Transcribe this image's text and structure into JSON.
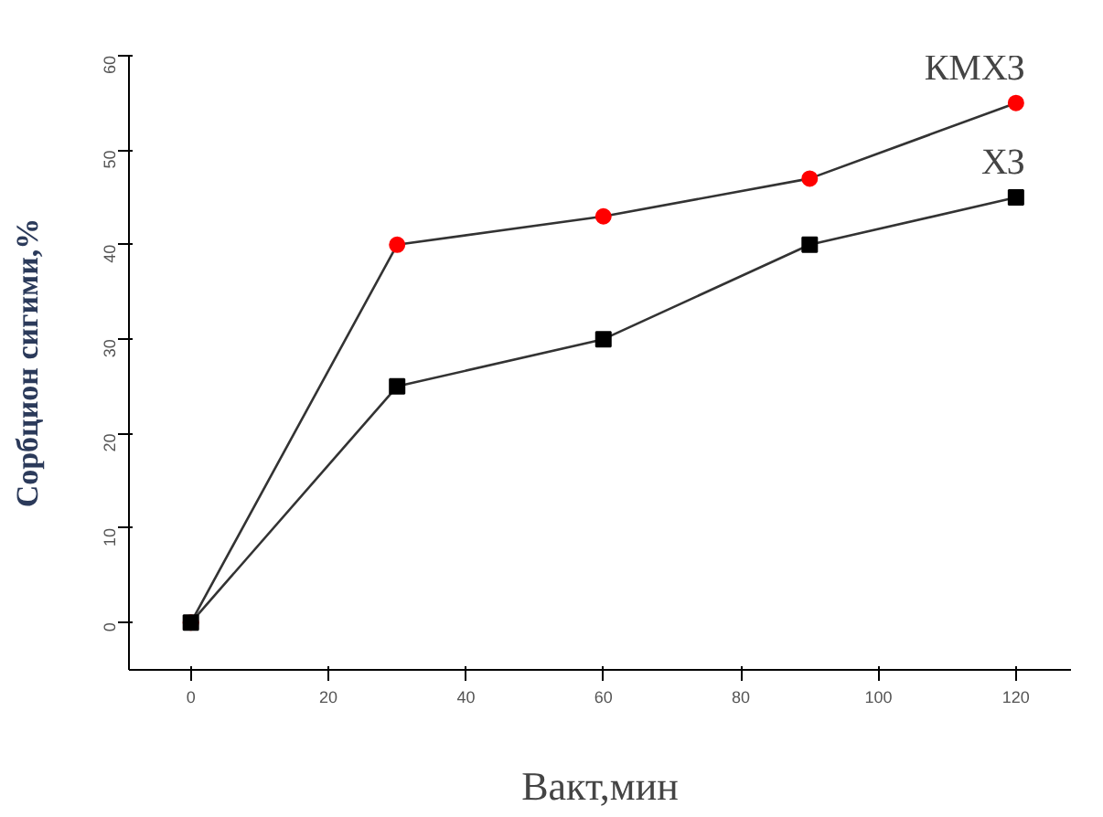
{
  "chart_data": {
    "type": "line",
    "xlabel": "Вакт,мин",
    "ylabel": "Сорбцион сигими,%",
    "x": [
      0,
      30,
      60,
      90,
      120
    ],
    "series": [
      {
        "name": "КМХЗ",
        "color": "#ff0000",
        "marker": "circle",
        "values": [
          0,
          40,
          43,
          47,
          55
        ]
      },
      {
        "name": "ХЗ",
        "color": "#000000",
        "marker": "square",
        "values": [
          0,
          25,
          30,
          40,
          45
        ]
      }
    ],
    "xlim": [
      -9,
      128
    ],
    "xticks": [
      0,
      20,
      40,
      60,
      80,
      100,
      120
    ],
    "ylim": [
      -5,
      60
    ],
    "yticks": [
      0,
      10,
      20,
      30,
      40,
      50,
      60
    ],
    "grid": false
  }
}
